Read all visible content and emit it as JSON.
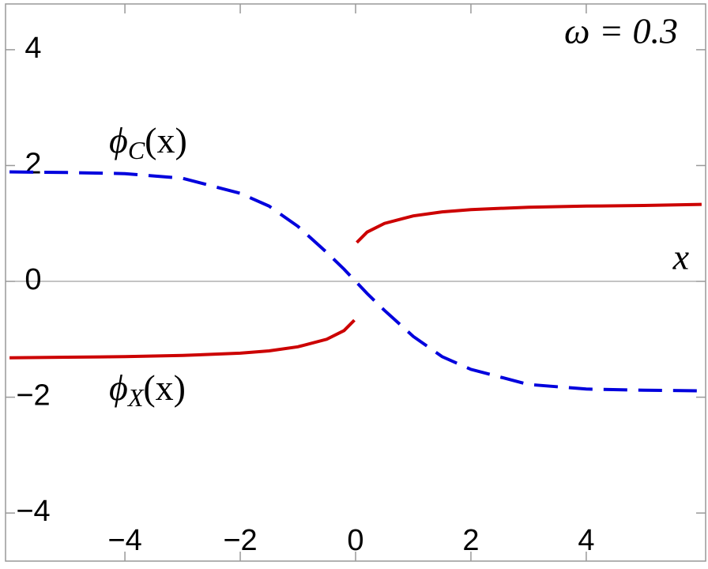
{
  "chart_data": {
    "type": "line",
    "x": [
      -6,
      -5,
      -4,
      -3,
      -2,
      -1.5,
      -1,
      -0.5,
      -0.2,
      -0.02,
      0,
      0.02,
      0.2,
      0.5,
      1,
      1.5,
      2,
      3,
      4,
      5,
      6
    ],
    "series": [
      {
        "label": [
          "ϕ",
          "C",
          "(x)"
        ],
        "color": "#0000dd",
        "dashed": true,
        "values": [
          1.89,
          1.88,
          1.86,
          1.78,
          1.52,
          1.3,
          0.95,
          0.5,
          0.21,
          0.02,
          0,
          -0.02,
          -0.21,
          -0.5,
          -0.95,
          -1.3,
          -1.52,
          -1.78,
          -1.86,
          -1.88,
          -1.89
        ]
      },
      {
        "label": [
          "ϕ",
          "X",
          "(x)"
        ],
        "color": "#cc0000",
        "dashed": false,
        "values": [
          -1.32,
          -1.31,
          -1.3,
          -1.28,
          -1.24,
          -1.2,
          -1.13,
          -1.0,
          -0.85,
          -0.67,
          null,
          0.67,
          0.85,
          1.0,
          1.13,
          1.2,
          1.24,
          1.28,
          1.3,
          1.31,
          1.33
        ]
      }
    ],
    "annotations": [
      "ω = 0.3",
      "x"
    ],
    "xlim": [
      -6.07,
      6.07
    ],
    "ylim": [
      -4.83,
      4.79
    ],
    "xticks": [
      {
        "value": -4,
        "label": "−4"
      },
      {
        "value": -2,
        "label": "−2"
      },
      0,
      2,
      4
    ],
    "yticks": [
      {
        "value": -4,
        "label": "−4"
      },
      {
        "value": -2,
        "label": "−2"
      },
      0,
      2,
      4
    ]
  }
}
